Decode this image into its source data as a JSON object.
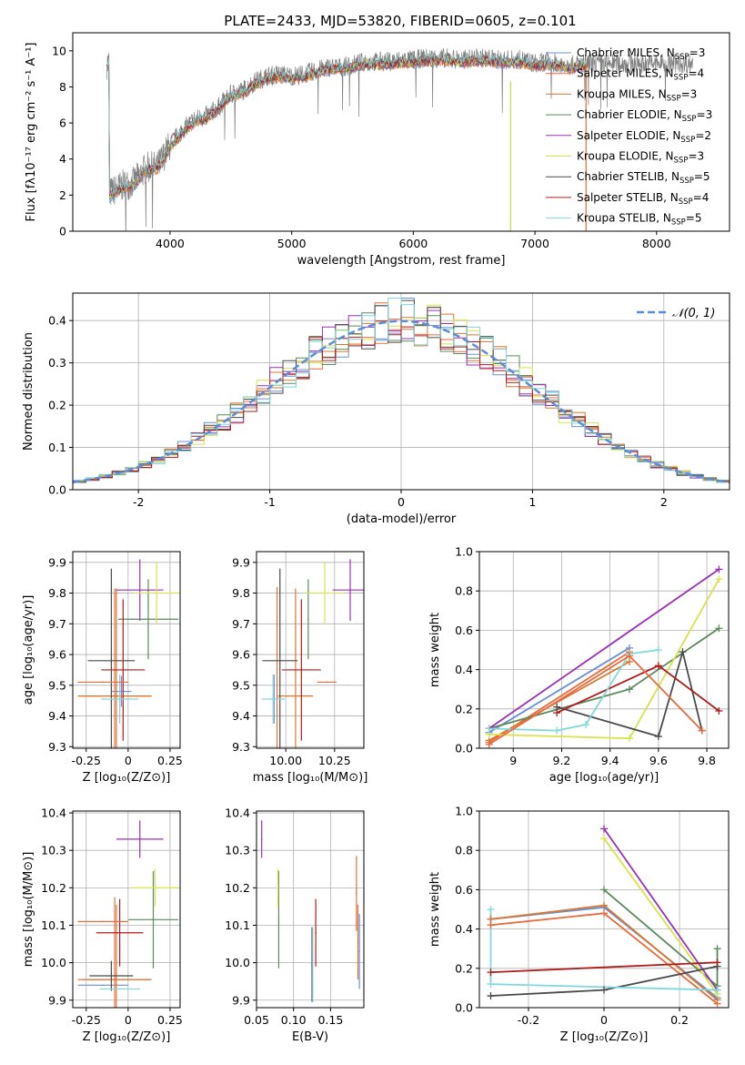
{
  "figure": {
    "title": "PLATE=2433, MJD=53820, FIBERID=0605, z=0.101"
  },
  "models": [
    {
      "name": "Chabrier MILES",
      "nssp": "3",
      "color": "#6a8fd8"
    },
    {
      "name": "Salpeter MILES",
      "nssp": "4",
      "color": "#e96a3a"
    },
    {
      "name": "Kroupa MILES",
      "nssp": "3",
      "color": "#d8782f"
    },
    {
      "name": "Chabrier ELODIE",
      "nssp": "3",
      "color": "#5a8a5c"
    },
    {
      "name": "Salpeter ELODIE",
      "nssp": "2",
      "color": "#9b30b7"
    },
    {
      "name": "Kroupa ELODIE",
      "nssp": "3",
      "color": "#d6e44a"
    },
    {
      "name": "Chabrier STELIB",
      "nssp": "5",
      "color": "#4a4a4a"
    },
    {
      "name": "Salpeter STELIB",
      "nssp": "4",
      "color": "#b01c1c"
    },
    {
      "name": "Kroupa STELIB",
      "nssp": "5",
      "color": "#7fd8dc"
    }
  ],
  "chart_data": [
    {
      "id": "spectrum",
      "type": "line",
      "title": "PLATE=2433, MJD=53820, FIBERID=0605, z=0.101",
      "xlabel": "wavelength [Angstrom, rest frame]",
      "ylabel": "Flux [fλ10⁻¹⁷ erg cm⁻² s⁻¹ A⁻¹]",
      "xlim": [
        3200,
        8600
      ],
      "ylim": [
        0,
        11
      ],
      "xticks": [
        4000,
        5000,
        6000,
        7000,
        8000
      ],
      "yticks": [
        0,
        2,
        4,
        6,
        8,
        10
      ],
      "grid": false,
      "legend": "right",
      "envelope": [
        [
          3500,
          2.1
        ],
        [
          3600,
          2.5
        ],
        [
          3700,
          2.7
        ],
        [
          3800,
          3.5
        ],
        [
          3900,
          3.6
        ],
        [
          4000,
          4.8
        ],
        [
          4100,
          5.6
        ],
        [
          4200,
          6.2
        ],
        [
          4300,
          6.4
        ],
        [
          4400,
          6.9
        ],
        [
          4500,
          7.6
        ],
        [
          4600,
          7.8
        ],
        [
          4700,
          8.3
        ],
        [
          4800,
          8.6
        ],
        [
          4900,
          8.7
        ],
        [
          5000,
          8.6
        ],
        [
          5100,
          8.7
        ],
        [
          5200,
          8.9
        ],
        [
          5300,
          9.1
        ],
        [
          5400,
          9.1
        ],
        [
          5500,
          9.2
        ],
        [
          5600,
          9.4
        ],
        [
          5700,
          9.4
        ],
        [
          5800,
          9.4
        ],
        [
          5900,
          9.5
        ],
        [
          6000,
          9.5
        ],
        [
          6100,
          9.6
        ],
        [
          6200,
          9.6
        ],
        [
          6300,
          9.6
        ],
        [
          6400,
          9.5
        ],
        [
          6500,
          9.6
        ],
        [
          6600,
          9.6
        ],
        [
          6700,
          9.5
        ],
        [
          6800,
          9.5
        ],
        [
          6900,
          9.5
        ],
        [
          7000,
          9.3
        ],
        [
          7100,
          9.4
        ],
        [
          7200,
          9.3
        ],
        [
          7300,
          9.2
        ],
        [
          7400,
          9.3
        ]
      ]
    },
    {
      "id": "residuals",
      "type": "line",
      "xlabel": "(data-model)/error",
      "ylabel": "Normed distribution",
      "xlim": [
        -2.5,
        2.5
      ],
      "ylim": [
        0,
        0.465
      ],
      "xticks": [
        -2,
        -1,
        0,
        1,
        2
      ],
      "yticks": [
        0.0,
        0.1,
        0.2,
        0.3,
        0.4
      ],
      "grid": true,
      "legend": "top-right",
      "reference_label": "𝒩(0, 1)",
      "reference_color": "#5b8ed6"
    },
    {
      "id": "age-vs-z",
      "type": "scatter",
      "xlabel": "Z [log₁₀(Z/Z⊙)]",
      "ylabel": "age  [log₁₀(age/yr)]",
      "xlim": [
        -0.33,
        0.31
      ],
      "ylim": [
        9.295,
        9.935
      ],
      "xticks": [
        -0.25,
        0.0,
        0.25
      ],
      "yticks": [
        9.3,
        9.4,
        9.5,
        9.6,
        9.7,
        9.8,
        9.9
      ],
      "grid": true,
      "points": [
        {
          "model": 0,
          "x": -0.04,
          "xerr": 0.06,
          "y": 9.48,
          "yerr": 0.05
        },
        {
          "model": 1,
          "x": -0.07,
          "xerr": 0.21,
          "y": 9.465,
          "yerr": 0.35
        },
        {
          "model": 2,
          "x": -0.08,
          "xerr": 0.22,
          "y": 9.465,
          "yerr": 0.35
        },
        {
          "model": 3,
          "x": 0.12,
          "xerr": 0.18,
          "y": 9.715,
          "yerr": 0.13
        },
        {
          "model": 4,
          "x": 0.07,
          "xerr": 0.14,
          "y": 9.81,
          "yerr": 0.1
        },
        {
          "model": 5,
          "x": 0.17,
          "xerr": 0.14,
          "y": 9.8,
          "yerr": 0.1
        },
        {
          "model": 6,
          "x": -0.1,
          "xerr": 0.14,
          "y": 9.58,
          "yerr": 0.3
        },
        {
          "model": 7,
          "x": -0.03,
          "xerr": 0.13,
          "y": 9.55,
          "yerr": 0.23
        },
        {
          "model": 8,
          "x": -0.05,
          "xerr": 0.11,
          "y": 9.455,
          "yerr": 0.08
        },
        {
          "model": 1,
          "x": -0.15,
          "xerr": 0.15,
          "y": 9.51,
          "yerr": 0.0
        }
      ]
    },
    {
      "id": "age-vs-mass",
      "type": "scatter",
      "xlabel": "mass [log₁₀(M/M⊙)]",
      "ylabel": "",
      "xlim": [
        9.85,
        10.4
      ],
      "ylim": [
        9.295,
        9.935
      ],
      "xticks": [
        10.0,
        10.25
      ],
      "xticklabels": [
        "10.00",
        "10.25"
      ],
      "yticks": [
        9.3,
        9.4,
        9.5,
        9.6,
        9.7,
        9.8,
        9.9
      ],
      "grid": true,
      "points": [
        {
          "model": 0,
          "x": 9.94,
          "xerr": 0.0,
          "y": 9.455,
          "yerr": 0.08
        },
        {
          "model": 1,
          "x": 9.955,
          "xerr": 0.0,
          "y": 9.46,
          "yerr": 0.36
        },
        {
          "model": 2,
          "x": 10.05,
          "xerr": 0.09,
          "y": 9.465,
          "yerr": 0.35
        },
        {
          "model": 3,
          "x": 10.115,
          "xerr": 0.0,
          "y": 9.715,
          "yerr": 0.13
        },
        {
          "model": 4,
          "x": 10.33,
          "xerr": 0.09,
          "y": 9.81,
          "yerr": 0.1
        },
        {
          "model": 5,
          "x": 10.2,
          "xerr": 0.1,
          "y": 9.8,
          "yerr": 0.1
        },
        {
          "model": 6,
          "x": 9.97,
          "xerr": 0.09,
          "y": 9.58,
          "yerr": 0.3
        },
        {
          "model": 7,
          "x": 10.08,
          "xerr": 0.1,
          "y": 9.55,
          "yerr": 0.23
        },
        {
          "model": 8,
          "x": 9.935,
          "xerr": 0.06,
          "y": 9.455,
          "yerr": 0.08
        },
        {
          "model": 1,
          "x": 10.21,
          "xerr": 0.05,
          "y": 9.51,
          "yerr": 0.0
        }
      ]
    },
    {
      "id": "weight-vs-age",
      "type": "line",
      "xlabel": "age  [log₁₀(age/yr)]",
      "ylabel": "mass weight",
      "xlim": [
        8.86,
        9.89
      ],
      "ylim": [
        0,
        1.0
      ],
      "xticks": [
        9.0,
        9.2,
        9.4,
        9.6,
        9.8
      ],
      "yticks": [
        0.0,
        0.2,
        0.4,
        0.6,
        0.8,
        1.0
      ],
      "grid": true,
      "series": [
        {
          "model": 0,
          "x": [
            8.9,
            9.48
          ],
          "y": [
            0.08,
            0.51
          ]
        },
        {
          "model": 1,
          "x": [
            8.9,
            9.48
          ],
          "y": [
            0.03,
            0.49
          ]
        },
        {
          "model": 2,
          "x": [
            8.9,
            9.48
          ],
          "y": [
            0.04,
            0.44
          ]
        },
        {
          "model": 3,
          "x": [
            8.9,
            9.48,
            9.85
          ],
          "y": [
            0.1,
            0.3,
            0.61
          ]
        },
        {
          "model": 4,
          "x": [
            8.9,
            9.85
          ],
          "y": [
            0.1,
            0.91
          ]
        },
        {
          "model": 5,
          "x": [
            8.9,
            9.48,
            9.85
          ],
          "y": [
            0.07,
            0.05,
            0.86
          ]
        },
        {
          "model": 6,
          "x": [
            9.18,
            9.6,
            9.7,
            9.78
          ],
          "y": [
            0.21,
            0.06,
            0.49,
            0.09
          ]
        },
        {
          "model": 7,
          "x": [
            9.18,
            9.6,
            9.85
          ],
          "y": [
            0.18,
            0.42,
            0.19
          ]
        },
        {
          "model": 8,
          "x": [
            8.9,
            9.18,
            9.3,
            9.48,
            9.6
          ],
          "y": [
            0.1,
            0.09,
            0.12,
            0.48,
            0.5
          ]
        },
        {
          "model": 1,
          "x": [
            8.9,
            9.48,
            9.78
          ],
          "y": [
            0.02,
            0.47,
            0.09
          ]
        }
      ]
    },
    {
      "id": "mass-vs-z",
      "type": "scatter",
      "xlabel": "Z [log₁₀(Z/Z⊙)]",
      "ylabel": "mass [log₁₀(M/M⊙)]",
      "xlim": [
        -0.33,
        0.31
      ],
      "ylim": [
        9.88,
        10.405
      ],
      "xticks": [
        -0.25,
        0.0,
        0.25
      ],
      "yticks": [
        9.9,
        10.0,
        10.1,
        10.2,
        10.3,
        10.4
      ],
      "grid": true,
      "points": [
        {
          "model": 0,
          "x": -0.15,
          "xerr": 0.15,
          "y": 9.94,
          "yerr": 0.0
        },
        {
          "model": 1,
          "x": -0.07,
          "xerr": 0.2,
          "y": 9.955,
          "yerr": 0.2
        },
        {
          "model": 2,
          "x": -0.08,
          "xerr": 0.22,
          "y": 9.955,
          "yerr": 0.22
        },
        {
          "model": 3,
          "x": 0.15,
          "xerr": 0.15,
          "y": 10.115,
          "yerr": 0.13
        },
        {
          "model": 4,
          "x": 0.07,
          "xerr": 0.14,
          "y": 10.33,
          "yerr": 0.05
        },
        {
          "model": 5,
          "x": 0.16,
          "xerr": 0.14,
          "y": 10.2,
          "yerr": 0.05
        },
        {
          "model": 6,
          "x": -0.1,
          "xerr": 0.13,
          "y": 9.965,
          "yerr": 0.04
        },
        {
          "model": 7,
          "x": -0.05,
          "xerr": 0.14,
          "y": 10.08,
          "yerr": 0.09
        },
        {
          "model": 8,
          "x": -0.05,
          "xerr": 0.12,
          "y": 9.93,
          "yerr": 0.0
        },
        {
          "model": 1,
          "x": -0.15,
          "xerr": 0.15,
          "y": 10.11,
          "yerr": 0.0
        }
      ]
    },
    {
      "id": "mass-vs-ebv",
      "type": "scatter",
      "xlabel": "E(B-V)",
      "ylabel": "",
      "xlim": [
        0.05,
        0.195
      ],
      "ylim": [
        9.88,
        10.405
      ],
      "xticks": [
        0.05,
        0.1,
        0.15
      ],
      "xticklabels": [
        "0.05",
        "0.10",
        "0.15"
      ],
      "yticks": [
        9.9,
        10.0,
        10.1,
        10.2,
        10.3,
        10.4
      ],
      "grid": true,
      "points": [
        {
          "model": 4,
          "x": 0.057,
          "y": 10.33,
          "yerr": 0.05
        },
        {
          "model": 3,
          "x": 0.08,
          "y": 10.115,
          "yerr": 0.13
        },
        {
          "model": 5,
          "x": 0.079,
          "y": 10.2,
          "yerr": 0.05
        },
        {
          "model": 6,
          "x": 0.125,
          "y": 9.995,
          "yerr": 0.1
        },
        {
          "model": 7,
          "x": 0.13,
          "y": 10.08,
          "yerr": 0.09
        },
        {
          "model": 8,
          "x": 0.126,
          "y": 9.995,
          "yerr": 0.1
        },
        {
          "model": 1,
          "x": 0.185,
          "y": 10.185,
          "yerr": 0.1
        },
        {
          "model": 2,
          "x": 0.187,
          "y": 10.055,
          "yerr": 0.1
        },
        {
          "model": 0,
          "x": 0.189,
          "y": 10.03,
          "yerr": 0.1
        }
      ]
    },
    {
      "id": "weight-vs-z",
      "type": "line",
      "xlabel": "Z [log₁₀(Z/Z⊙)]",
      "ylabel": "mass weight",
      "xlim": [
        -0.33,
        0.33
      ],
      "ylim": [
        0,
        1.0
      ],
      "xticks": [
        -0.2,
        0.0,
        0.2
      ],
      "yticks": [
        0.0,
        0.2,
        0.4,
        0.6,
        0.8,
        1.0
      ],
      "grid": true,
      "series": [
        {
          "model": 0,
          "x": [
            -0.3,
            0.0,
            0.3
          ],
          "y": [
            0.45,
            0.51,
            0.05
          ]
        },
        {
          "model": 1,
          "x": [
            -0.3,
            0.0,
            0.3
          ],
          "y": [
            0.42,
            0.48,
            0.02
          ]
        },
        {
          "model": 2,
          "x": [
            -0.3,
            0.0,
            0.3
          ],
          "y": [
            0.45,
            0.52,
            0.04
          ]
        },
        {
          "model": 3,
          "x": [
            0.0,
            0.3,
            0.3
          ],
          "y": [
            0.6,
            0.11,
            0.3
          ]
        },
        {
          "model": 4,
          "x": [
            0.0,
            0.3
          ],
          "y": [
            0.91,
            0.09
          ]
        },
        {
          "model": 5,
          "x": [
            0.0,
            0.3
          ],
          "y": [
            0.86,
            0.07
          ]
        },
        {
          "model": 6,
          "x": [
            -0.3,
            0.0,
            0.3
          ],
          "y": [
            0.06,
            0.09,
            0.21
          ]
        },
        {
          "model": 7,
          "x": [
            -0.3,
            0.3
          ],
          "y": [
            0.18,
            0.23
          ]
        },
        {
          "model": 8,
          "x": [
            -0.3,
            -0.3,
            0.3
          ],
          "y": [
            0.5,
            0.12,
            0.09
          ]
        }
      ]
    }
  ]
}
